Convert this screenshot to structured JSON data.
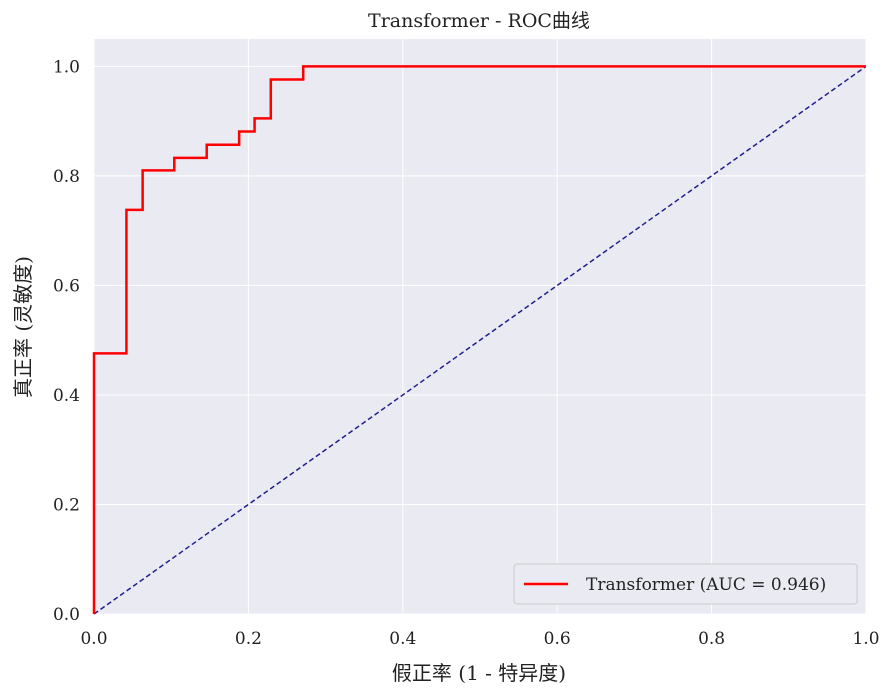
{
  "chart_data": {
    "type": "line",
    "title": "Transformer - ROC曲线",
    "xlabel": "假正率 (1 - 特异度)",
    "ylabel": "真正率 (灵敏度)",
    "xlim": [
      0.0,
      1.0
    ],
    "ylim": [
      0.0,
      1.05
    ],
    "x_ticks": [
      0.0,
      0.2,
      0.4,
      0.6,
      0.8,
      1.0
    ],
    "y_ticks": [
      0.0,
      0.2,
      0.4,
      0.6,
      0.8,
      1.0
    ],
    "x_tick_labels": [
      "0.0",
      "0.2",
      "0.4",
      "0.6",
      "0.8",
      "1.0"
    ],
    "y_tick_labels": [
      "0.0",
      "0.2",
      "0.4",
      "0.6",
      "0.8",
      "1.0"
    ],
    "grid": true,
    "legend_position": "lower-right",
    "series": [
      {
        "name": "Transformer (AUC = 0.946)",
        "color": "#ff0000",
        "style": "solid",
        "x": [
          0.0,
          0.0,
          0.042,
          0.042,
          0.063,
          0.063,
          0.104,
          0.104,
          0.146,
          0.146,
          0.188,
          0.188,
          0.208,
          0.208,
          0.229,
          0.229,
          0.271,
          0.271,
          1.0
        ],
        "y": [
          0.0,
          0.476,
          0.476,
          0.738,
          0.738,
          0.81,
          0.81,
          0.833,
          0.833,
          0.857,
          0.857,
          0.881,
          0.881,
          0.905,
          0.905,
          0.976,
          0.976,
          1.0,
          1.0
        ]
      },
      {
        "color": "#1f1f8f",
        "style": "dashed",
        "x": [
          0.0,
          1.0
        ],
        "y": [
          0.0,
          1.0
        ]
      }
    ],
    "colors": {
      "plot_background": "#eaeaf2",
      "grid": "#ffffff",
      "text": "#222222"
    }
  }
}
